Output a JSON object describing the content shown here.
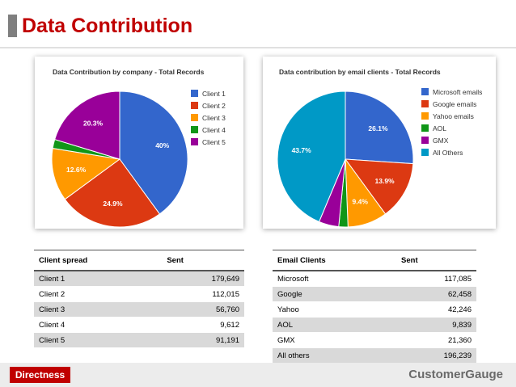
{
  "page": {
    "title": "Data Contribution"
  },
  "colors": {
    "title": "#c00000",
    "accent_bar": "#7f7f7f",
    "footer_logo": "#c00000"
  },
  "chart_data": [
    {
      "type": "pie",
      "title": "Data Contribution by company - Total Records",
      "categories": [
        "Client 1",
        "Client 2",
        "Client 3",
        "Client 4",
        "Client 5"
      ],
      "values": [
        179649,
        112015,
        56760,
        9612,
        91191
      ],
      "colors": [
        "#3366cc",
        "#dc3912",
        "#ff9900",
        "#109618",
        "#990099"
      ],
      "slice_labels": [
        "40%",
        "24.9%",
        "12.6%",
        "",
        "20.3%"
      ],
      "legend": "right"
    },
    {
      "type": "pie",
      "title": "Data contribution by email clients - Total Records",
      "categories": [
        "Microsoft emails",
        "Google emails",
        "Yahoo emails",
        "AOL",
        "GMX",
        "All Others"
      ],
      "values": [
        117085,
        62458,
        42246,
        9839,
        21360,
        196239
      ],
      "colors": [
        "#3366cc",
        "#dc3912",
        "#ff9900",
        "#109618",
        "#990099",
        "#0099c6"
      ],
      "slice_labels": [
        "26.1%",
        "13.9%",
        "9.4%",
        "",
        "",
        "43.7%"
      ],
      "legend": "right"
    }
  ],
  "table1": {
    "headers": [
      "Client spread",
      "Sent"
    ],
    "rows": [
      [
        "Client 1",
        "179,649"
      ],
      [
        "Client 2",
        "112,015"
      ],
      [
        "Client 3",
        "56,760"
      ],
      [
        "Client 4",
        "9,612"
      ],
      [
        "Client 5",
        "91,191"
      ]
    ]
  },
  "table2": {
    "headers": [
      "Email Clients",
      "Sent"
    ],
    "rows": [
      [
        "Microsoft",
        "117,085"
      ],
      [
        "Google",
        "62,458"
      ],
      [
        "Yahoo",
        "42,246"
      ],
      [
        "AOL",
        "9,839"
      ],
      [
        "GMX",
        "21,360"
      ],
      [
        "All others",
        "196,239"
      ]
    ]
  },
  "footer": {
    "left_logo": "Directness",
    "right_logo": "CustomerGauge"
  }
}
